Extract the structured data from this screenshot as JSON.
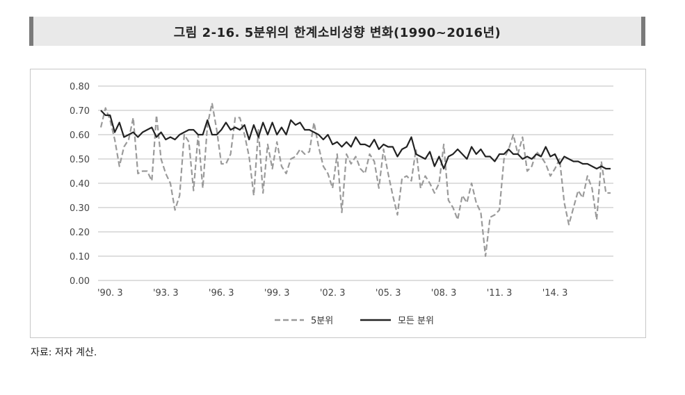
{
  "title": "그림 2-16. 5분위의 한계소비성향 변화(1990~2016년)",
  "source_note": "자료: 저자 계산.",
  "chart_data": {
    "type": "line",
    "title": "그림 2-16. 5분위의 한계소비성향 변화(1990~2016년)",
    "xlabel": "",
    "ylabel": "",
    "ylim": [
      0,
      0.8
    ],
    "yticks": [
      "0.00",
      "0.10",
      "0.20",
      "0.30",
      "0.40",
      "0.50",
      "0.60",
      "0.70",
      "0.80"
    ],
    "xtick_labels": [
      "'90. 3",
      "'93. 3",
      "'96. 3",
      "'99. 3",
      "'02. 3",
      "'05. 3",
      "'08. 3",
      "'11. 3",
      "'14. 3"
    ],
    "x_start": "1990.1",
    "frequency": "quarterly",
    "grid": "horizontal",
    "legend_position": "bottom",
    "series": [
      {
        "name": "5분위",
        "style": "dashed",
        "color": "#9a9a9a",
        "values": [
          0.63,
          0.71,
          0.66,
          0.58,
          0.47,
          0.55,
          0.58,
          0.67,
          0.44,
          0.45,
          0.45,
          0.41,
          0.68,
          0.5,
          0.44,
          0.4,
          0.29,
          0.35,
          0.6,
          0.57,
          0.37,
          0.6,
          0.38,
          0.64,
          0.73,
          0.62,
          0.48,
          0.48,
          0.52,
          0.67,
          0.67,
          0.6,
          0.51,
          0.35,
          0.62,
          0.36,
          0.56,
          0.46,
          0.57,
          0.47,
          0.44,
          0.5,
          0.51,
          0.54,
          0.52,
          0.53,
          0.65,
          0.55,
          0.47,
          0.44,
          0.38,
          0.52,
          0.28,
          0.52,
          0.48,
          0.51,
          0.46,
          0.44,
          0.52,
          0.49,
          0.38,
          0.54,
          0.44,
          0.35,
          0.27,
          0.42,
          0.43,
          0.41,
          0.54,
          0.38,
          0.43,
          0.4,
          0.36,
          0.4,
          0.56,
          0.33,
          0.3,
          0.25,
          0.35,
          0.32,
          0.4,
          0.32,
          0.28,
          0.1,
          0.26,
          0.27,
          0.29,
          0.5,
          0.54,
          0.6,
          0.52,
          0.59,
          0.45,
          0.47,
          0.53,
          0.51,
          0.48,
          0.43,
          0.46,
          0.5,
          0.32,
          0.23,
          0.3,
          0.37,
          0.34,
          0.43,
          0.38,
          0.25,
          0.49,
          0.36,
          0.36
        ]
      },
      {
        "name": "모든 분위",
        "style": "solid",
        "color": "#222222",
        "values": [
          0.7,
          0.68,
          0.68,
          0.61,
          0.65,
          0.59,
          0.6,
          0.61,
          0.59,
          0.61,
          0.62,
          0.63,
          0.59,
          0.61,
          0.58,
          0.59,
          0.58,
          0.6,
          0.61,
          0.62,
          0.62,
          0.6,
          0.6,
          0.66,
          0.6,
          0.6,
          0.62,
          0.65,
          0.62,
          0.63,
          0.62,
          0.64,
          0.58,
          0.64,
          0.59,
          0.65,
          0.6,
          0.65,
          0.6,
          0.63,
          0.6,
          0.66,
          0.64,
          0.65,
          0.62,
          0.62,
          0.61,
          0.6,
          0.58,
          0.6,
          0.56,
          0.57,
          0.55,
          0.57,
          0.55,
          0.59,
          0.56,
          0.56,
          0.55,
          0.58,
          0.54,
          0.56,
          0.55,
          0.55,
          0.51,
          0.54,
          0.55,
          0.59,
          0.52,
          0.51,
          0.5,
          0.53,
          0.47,
          0.51,
          0.46,
          0.51,
          0.52,
          0.54,
          0.52,
          0.5,
          0.55,
          0.52,
          0.54,
          0.51,
          0.51,
          0.49,
          0.52,
          0.52,
          0.54,
          0.52,
          0.52,
          0.5,
          0.51,
          0.5,
          0.52,
          0.51,
          0.55,
          0.51,
          0.52,
          0.48,
          0.51,
          0.5,
          0.49,
          0.49,
          0.48,
          0.48,
          0.47,
          0.46,
          0.47,
          0.46,
          0.46
        ]
      }
    ]
  }
}
